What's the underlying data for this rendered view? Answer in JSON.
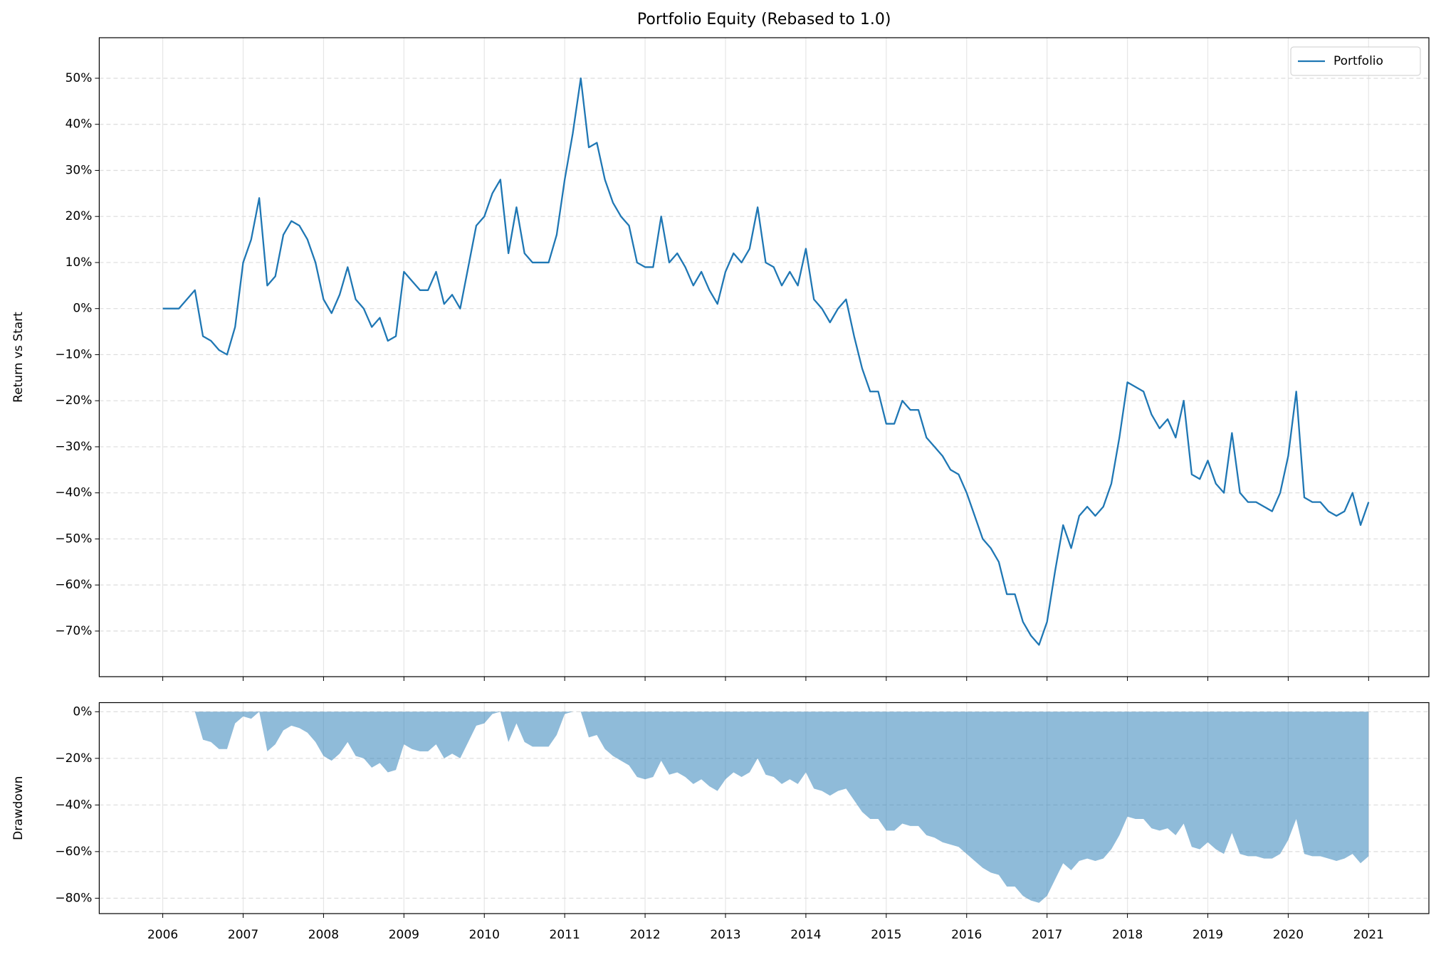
{
  "chart_data": [
    {
      "type": "line",
      "title": "Portfolio Equity (Rebased to 1.0)",
      "ylabel": "Return vs Start",
      "grid": true,
      "legend": "upper right",
      "xlim": [
        2005.21,
        2021.75
      ],
      "ylim": [
        -79.9,
        58.8
      ],
      "yticks": [
        {
          "value": 50,
          "label": "50%"
        },
        {
          "value": 40,
          "label": "40%"
        },
        {
          "value": 30,
          "label": "30%"
        },
        {
          "value": 20,
          "label": "20%"
        },
        {
          "value": 10,
          "label": "10%"
        },
        {
          "value": 0,
          "label": "0%"
        },
        {
          "value": -10,
          "label": "−10%"
        },
        {
          "value": -20,
          "label": "−20%"
        },
        {
          "value": -30,
          "label": "−30%"
        },
        {
          "value": -40,
          "label": "−40%"
        },
        {
          "value": -50,
          "label": "−50%"
        },
        {
          "value": -60,
          "label": "−60%"
        },
        {
          "value": -70,
          "label": "−70%"
        }
      ],
      "x": [
        2006.0,
        2006.1,
        2006.2,
        2006.3,
        2006.4,
        2006.5,
        2006.6,
        2006.7,
        2006.8,
        2006.9,
        2007.0,
        2007.1,
        2007.2,
        2007.3,
        2007.4,
        2007.5,
        2007.6,
        2007.7,
        2007.8,
        2007.9,
        2008.0,
        2008.1,
        2008.2,
        2008.3,
        2008.4,
        2008.5,
        2008.6,
        2008.7,
        2008.8,
        2008.9,
        2009.0,
        2009.1,
        2009.2,
        2009.3,
        2009.4,
        2009.5,
        2009.6,
        2009.7,
        2009.8,
        2009.9,
        2010.0,
        2010.1,
        2010.2,
        2010.3,
        2010.4,
        2010.5,
        2010.6,
        2010.7,
        2010.8,
        2010.9,
        2011.0,
        2011.1,
        2011.2,
        2011.3,
        2011.4,
        2011.5,
        2011.6,
        2011.7,
        2011.8,
        2011.9,
        2012.0,
        2012.1,
        2012.2,
        2012.3,
        2012.4,
        2012.5,
        2012.6,
        2012.7,
        2012.8,
        2012.9,
        2013.0,
        2013.1,
        2013.2,
        2013.3,
        2013.4,
        2013.5,
        2013.6,
        2013.7,
        2013.8,
        2013.9,
        2014.0,
        2014.1,
        2014.2,
        2014.3,
        2014.4,
        2014.5,
        2014.6,
        2014.7,
        2014.8,
        2014.9,
        2015.0,
        2015.1,
        2015.2,
        2015.3,
        2015.4,
        2015.5,
        2015.6,
        2015.7,
        2015.8,
        2015.9,
        2016.0,
        2016.1,
        2016.2,
        2016.3,
        2016.4,
        2016.5,
        2016.6,
        2016.7,
        2016.8,
        2016.9,
        2017.0,
        2017.1,
        2017.2,
        2017.3,
        2017.4,
        2017.5,
        2017.6,
        2017.7,
        2017.8,
        2017.9,
        2018.0,
        2018.1,
        2018.2,
        2018.3,
        2018.4,
        2018.5,
        2018.6,
        2018.7,
        2018.8,
        2018.9,
        2019.0,
        2019.1,
        2019.2,
        2019.3,
        2019.4,
        2019.5,
        2019.6,
        2019.7,
        2019.8,
        2019.9,
        2020.0,
        2020.1,
        2020.2,
        2020.3,
        2020.4,
        2020.5,
        2020.6,
        2020.7,
        2020.8,
        2020.9,
        2021.0
      ],
      "series": [
        {
          "name": "Portfolio",
          "color": "#1f77b4",
          "values": [
            0,
            0,
            0,
            2,
            4,
            -6,
            -7,
            -9,
            -10,
            -4,
            10,
            15,
            24,
            5,
            7,
            16,
            19,
            18,
            15,
            10,
            2,
            -1,
            3,
            9,
            2,
            0,
            -4,
            -2,
            -7,
            -6,
            8,
            6,
            4,
            4,
            8,
            1,
            3,
            0,
            9,
            18,
            20,
            25,
            28,
            12,
            22,
            12,
            10,
            10,
            10,
            16,
            28,
            38,
            50,
            35,
            36,
            28,
            23,
            20,
            18,
            10,
            9,
            9,
            20,
            10,
            12,
            9,
            5,
            8,
            4,
            1,
            8,
            12,
            10,
            13,
            22,
            10,
            9,
            5,
            8,
            5,
            13,
            2,
            0,
            -3,
            0,
            2,
            -6,
            -13,
            -18,
            -18,
            -25,
            -25,
            -20,
            -22,
            -22,
            -28,
            -30,
            -32,
            -35,
            -36,
            -40,
            -45,
            -50,
            -52,
            -55,
            -62,
            -62,
            -68,
            -71,
            -73,
            -68,
            -57,
            -47,
            -52,
            -45,
            -43,
            -45,
            -43,
            -38,
            -28,
            -16,
            -17,
            -18,
            -23,
            -26,
            -24,
            -28,
            -20,
            -36,
            -37,
            -33,
            -38,
            -40,
            -27,
            -40,
            -42,
            -42,
            -43,
            -44,
            -40,
            -32,
            -18,
            -41,
            -42,
            -42,
            -44,
            -45,
            -44,
            -40,
            -47,
            -42
          ]
        }
      ]
    },
    {
      "type": "area",
      "ylabel": "Drawdown",
      "grid": true,
      "color": "#1f77b4",
      "alpha": 0.5,
      "xlim": [
        2005.21,
        2021.75
      ],
      "ylim": [
        -86.6,
        3.9
      ],
      "xticks": [
        2006,
        2007,
        2008,
        2009,
        2010,
        2011,
        2012,
        2013,
        2014,
        2015,
        2016,
        2017,
        2018,
        2019,
        2020,
        2021
      ],
      "yticks": [
        {
          "value": 0,
          "label": "0%"
        },
        {
          "value": -20,
          "label": "−20%"
        },
        {
          "value": -40,
          "label": "−40%"
        },
        {
          "value": -60,
          "label": "−60%"
        },
        {
          "value": -80,
          "label": "−80%"
        }
      ],
      "x": [
        2006.0,
        2006.1,
        2006.2,
        2006.3,
        2006.4,
        2006.5,
        2006.6,
        2006.7,
        2006.8,
        2006.9,
        2007.0,
        2007.1,
        2007.2,
        2007.3,
        2007.4,
        2007.5,
        2007.6,
        2007.7,
        2007.8,
        2007.9,
        2008.0,
        2008.1,
        2008.2,
        2008.3,
        2008.4,
        2008.5,
        2008.6,
        2008.7,
        2008.8,
        2008.9,
        2009.0,
        2009.1,
        2009.2,
        2009.3,
        2009.4,
        2009.5,
        2009.6,
        2009.7,
        2009.8,
        2009.9,
        2010.0,
        2010.1,
        2010.2,
        2010.3,
        2010.4,
        2010.5,
        2010.6,
        2010.7,
        2010.8,
        2010.9,
        2011.0,
        2011.1,
        2011.2,
        2011.3,
        2011.4,
        2011.5,
        2011.6,
        2011.7,
        2011.8,
        2011.9,
        2012.0,
        2012.1,
        2012.2,
        2012.3,
        2012.4,
        2012.5,
        2012.6,
        2012.7,
        2012.8,
        2012.9,
        2013.0,
        2013.1,
        2013.2,
        2013.3,
        2013.4,
        2013.5,
        2013.6,
        2013.7,
        2013.8,
        2013.9,
        2014.0,
        2014.1,
        2014.2,
        2014.3,
        2014.4,
        2014.5,
        2014.6,
        2014.7,
        2014.8,
        2014.9,
        2015.0,
        2015.1,
        2015.2,
        2015.3,
        2015.4,
        2015.5,
        2015.6,
        2015.7,
        2015.8,
        2015.9,
        2016.0,
        2016.1,
        2016.2,
        2016.3,
        2016.4,
        2016.5,
        2016.6,
        2016.7,
        2016.8,
        2016.9,
        2017.0,
        2017.1,
        2017.2,
        2017.3,
        2017.4,
        2017.5,
        2017.6,
        2017.7,
        2017.8,
        2017.9,
        2018.0,
        2018.1,
        2018.2,
        2018.3,
        2018.4,
        2018.5,
        2018.6,
        2018.7,
        2018.8,
        2018.9,
        2019.0,
        2019.1,
        2019.2,
        2019.3,
        2019.4,
        2019.5,
        2019.6,
        2019.7,
        2019.8,
        2019.9,
        2020.0,
        2020.1,
        2020.2,
        2020.3,
        2020.4,
        2020.5,
        2020.6,
        2020.7,
        2020.8,
        2020.9,
        2021.0
      ],
      "values": [
        0,
        0,
        0,
        0,
        0,
        -12,
        -13,
        -16,
        -16,
        -5,
        -2,
        -3,
        0,
        -17,
        -14,
        -8,
        -6,
        -7,
        -9,
        -13,
        -19,
        -21,
        -18,
        -13,
        -19,
        -20,
        -24,
        -22,
        -26,
        -25,
        -14,
        -16,
        -17,
        -17,
        -14,
        -20,
        -18,
        -20,
        -13,
        -6,
        -5,
        -1,
        0,
        -13,
        -5,
        -13,
        -15,
        -15,
        -15,
        -10,
        -1,
        0,
        0,
        -11,
        -10,
        -16,
        -19,
        -21,
        -23,
        -28,
        -29,
        -28,
        -21,
        -27,
        -26,
        -28,
        -31,
        -29,
        -32,
        -34,
        -29,
        -26,
        -28,
        -26,
        -20,
        -27,
        -28,
        -31,
        -29,
        -31,
        -26,
        -33,
        -34,
        -36,
        -34,
        -33,
        -38,
        -43,
        -46,
        -46,
        -51,
        -51,
        -48,
        -49,
        -49,
        -53,
        -54,
        -56,
        -57,
        -58,
        -61,
        -64,
        -67,
        -69,
        -70,
        -75,
        -75,
        -79,
        -81,
        -82,
        -79,
        -72,
        -65,
        -68,
        -64,
        -63,
        -64,
        -63,
        -59,
        -53,
        -45,
        -46,
        -46,
        -50,
        -51,
        -50,
        -53,
        -48,
        -58,
        -59,
        -56,
        -59,
        -61,
        -52,
        -61,
        -62,
        -62,
        -63,
        -63,
        -61,
        -55,
        -46,
        -61,
        -62,
        -62,
        -63,
        -64,
        -63,
        -61,
        -65,
        -62
      ]
    }
  ]
}
